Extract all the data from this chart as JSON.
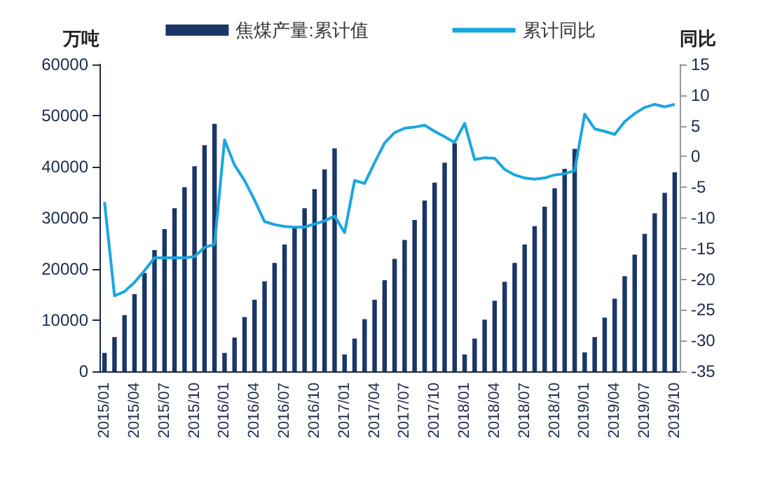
{
  "chart_data": {
    "type": "bar",
    "ylabel": "万吨",
    "y2label": "同比",
    "categories": [
      "2015/01",
      null,
      null,
      "2015/04",
      null,
      null,
      "2015/07",
      null,
      null,
      "2015/10",
      null,
      null,
      "2016/01",
      null,
      null,
      "2016/04",
      null,
      null,
      "2016/07",
      null,
      null,
      "2016/10",
      null,
      null,
      "2017/01",
      null,
      null,
      "2017/04",
      null,
      null,
      "2017/07",
      null,
      null,
      "2017/10",
      null,
      null,
      "2018/01",
      null,
      null,
      "2018/04",
      null,
      null,
      "2018/07",
      null,
      null,
      "2018/10",
      null,
      null,
      "2019/01",
      null,
      null,
      "2019/04",
      null,
      null,
      "2019/07",
      null,
      null,
      "2019/10"
    ],
    "series": [
      {
        "name": "焦煤产量:累计值",
        "color": "#1b3768",
        "values": [
          3600,
          6700,
          11000,
          15100,
          19200,
          23700,
          27800,
          31900,
          36000,
          40100,
          44200,
          48400,
          3600,
          6600,
          10600,
          14000,
          17600,
          21200,
          24800,
          28200,
          31900,
          35600,
          39500,
          43600,
          3300,
          6400,
          10200,
          14000,
          17800,
          22000,
          25700,
          29600,
          33400,
          36900,
          40800,
          44600,
          3300,
          6400,
          10100,
          13800,
          17500,
          21200,
          24800,
          28400,
          32200,
          35800,
          39600,
          43500,
          3700,
          6700,
          10500,
          14200,
          18600,
          22800,
          26900,
          30900,
          34900,
          38900
        ]
      },
      {
        "name": "累计同比",
        "type": "line",
        "axis": "y2",
        "color": "#1aa7e0",
        "values": [
          -7.4,
          -22.7,
          -22.0,
          -20.5,
          -18.6,
          -16.5,
          -16.5,
          -16.5,
          -16.5,
          -16.3,
          -14.8,
          -14.3,
          2.7,
          -1.4,
          -3.9,
          -7.1,
          -10.6,
          -11.1,
          -11.4,
          -11.5,
          -11.5,
          -11.0,
          -10.5,
          -9.7,
          -12.4,
          -3.9,
          -4.4,
          -1.0,
          2.2,
          3.9,
          4.6,
          4.8,
          5.1,
          4.1,
          3.2,
          2.3,
          5.4,
          -0.5,
          -0.2,
          -0.3,
          -2.1,
          -3.0,
          -3.5,
          -3.7,
          -3.5,
          -3.0,
          -2.8,
          -2.3,
          6.9,
          4.5,
          4.1,
          3.6,
          5.7,
          7.0,
          8.0,
          8.5,
          8.1,
          8.5
        ]
      }
    ],
    "ylim": [
      0,
      60000
    ],
    "yticks": [
      0,
      10000,
      20000,
      30000,
      40000,
      50000,
      60000
    ],
    "y2lim": [
      -35,
      15
    ],
    "y2ticks": [
      -35,
      -30,
      -25,
      -20,
      -15,
      -10,
      -5,
      0,
      5,
      10,
      15
    ],
    "grid": false,
    "legend": "top",
    "marker": "none",
    "line_style": "solid"
  }
}
